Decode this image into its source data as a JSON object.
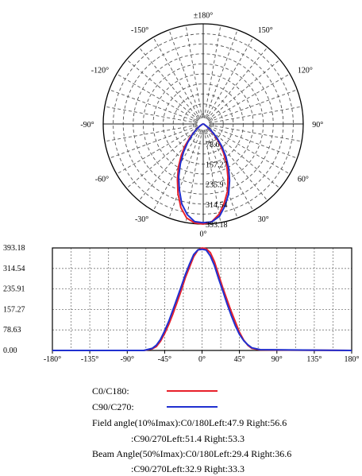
{
  "chart_data": [
    {
      "type": "polar",
      "angle_labels": [
        {
          "text": "±180°",
          "angle": 180
        },
        {
          "text": "-150°",
          "angle": -150
        },
        {
          "text": "150°",
          "angle": 150
        },
        {
          "text": "-120°",
          "angle": -120
        },
        {
          "text": "120°",
          "angle": 120
        },
        {
          "text": "-90°",
          "angle": -90
        },
        {
          "text": "90°",
          "angle": 90
        },
        {
          "text": "-60°",
          "angle": -60
        },
        {
          "text": "60°",
          "angle": 60
        },
        {
          "text": "-30°",
          "angle": -30
        },
        {
          "text": "30°",
          "angle": 30
        },
        {
          "text": "0°",
          "angle": 0
        }
      ],
      "radial_labels": [
        "78.6",
        "157.27",
        "235.9",
        "314.54",
        "393.18"
      ],
      "radial_values": [
        78.63,
        157.27,
        235.91,
        314.54,
        393.18
      ],
      "r_max": 393.18,
      "series": [
        {
          "name": "C0/C180",
          "color": "#e8202a",
          "points": [
            [
              -90,
              0
            ],
            [
              -80,
              2
            ],
            [
              -70,
              4
            ],
            [
              -62,
              10
            ],
            [
              -58,
              16
            ],
            [
              -55,
              25
            ],
            [
              -50,
              40
            ],
            [
              -45,
              70
            ],
            [
              -40,
              110
            ],
            [
              -35,
              150
            ],
            [
              -30,
              195
            ],
            [
              -25,
              240
            ],
            [
              -20,
              290
            ],
            [
              -15,
              340
            ],
            [
              -10,
              375
            ],
            [
              -5,
              390
            ],
            [
              0,
              393
            ],
            [
              5,
              385
            ],
            [
              10,
              360
            ],
            [
              15,
              320
            ],
            [
              20,
              280
            ],
            [
              25,
              230
            ],
            [
              30,
              185
            ],
            [
              35,
              140
            ],
            [
              40,
              100
            ],
            [
              45,
              65
            ],
            [
              50,
              35
            ],
            [
              55,
              15
            ],
            [
              60,
              6
            ],
            [
              70,
              3
            ],
            [
              80,
              1
            ],
            [
              90,
              0
            ]
          ]
        },
        {
          "name": "C90/C270",
          "color": "#2030d0",
          "points": [
            [
              -90,
              0
            ],
            [
              -80,
              2
            ],
            [
              -70,
              4
            ],
            [
              -62,
              10
            ],
            [
              -58,
              16
            ],
            [
              -55,
              22
            ],
            [
              -50,
              38
            ],
            [
              -45,
              62
            ],
            [
              -40,
              95
            ],
            [
              -35,
              135
            ],
            [
              -30,
              180
            ],
            [
              -25,
              228
            ],
            [
              -20,
              275
            ],
            [
              -15,
              325
            ],
            [
              -10,
              362
            ],
            [
              -5,
              385
            ],
            [
              0,
              388
            ],
            [
              5,
              386
            ],
            [
              10,
              368
            ],
            [
              15,
              332
            ],
            [
              20,
              292
            ],
            [
              25,
              245
            ],
            [
              30,
              200
            ],
            [
              35,
              155
            ],
            [
              40,
              112
            ],
            [
              45,
              75
            ],
            [
              50,
              42
            ],
            [
              55,
              20
            ],
            [
              60,
              8
            ],
            [
              70,
              3
            ],
            [
              80,
              1
            ],
            [
              90,
              0
            ]
          ]
        }
      ]
    },
    {
      "type": "line",
      "x_ticks": [
        "-180°",
        "-135°",
        "-90°",
        "-45°",
        "0°",
        "45°",
        "90°",
        "135°",
        "180°"
      ],
      "x_tick_values": [
        -180,
        -135,
        -90,
        -45,
        0,
        45,
        90,
        135,
        180
      ],
      "y_ticks": [
        "393.18",
        "314.54",
        "235.91",
        "157.27",
        "78.63",
        "0.00"
      ],
      "y_tick_values": [
        393.18,
        314.54,
        235.91,
        157.27,
        78.63,
        0
      ],
      "xlim": [
        -180,
        180
      ],
      "ylim": [
        0,
        393.18
      ],
      "grid": true,
      "series": [
        {
          "name": "C0/C180",
          "color": "#e8202a",
          "points": [
            [
              -180,
              0
            ],
            [
              -70,
              0
            ],
            [
              -60,
              6
            ],
            [
              -55,
              15
            ],
            [
              -50,
              35
            ],
            [
              -45,
              65
            ],
            [
              -40,
              100
            ],
            [
              -35,
              140
            ],
            [
              -30,
              185
            ],
            [
              -25,
              230
            ],
            [
              -20,
              280
            ],
            [
              -15,
              320
            ],
            [
              -10,
              360
            ],
            [
              -5,
              385
            ],
            [
              0,
              393
            ],
            [
              5,
              390
            ],
            [
              10,
              375
            ],
            [
              15,
              340
            ],
            [
              20,
              290
            ],
            [
              25,
              240
            ],
            [
              30,
              195
            ],
            [
              35,
              150
            ],
            [
              40,
              110
            ],
            [
              45,
              70
            ],
            [
              50,
              40
            ],
            [
              55,
              20
            ],
            [
              60,
              8
            ],
            [
              70,
              2
            ],
            [
              180,
              0
            ]
          ]
        },
        {
          "name": "C90/C270",
          "color": "#2030d0",
          "points": [
            [
              -180,
              0
            ],
            [
              -70,
              0
            ],
            [
              -60,
              8
            ],
            [
              -55,
              20
            ],
            [
              -50,
              42
            ],
            [
              -45,
              75
            ],
            [
              -40,
              112
            ],
            [
              -35,
              155
            ],
            [
              -30,
              200
            ],
            [
              -25,
              245
            ],
            [
              -20,
              292
            ],
            [
              -15,
              332
            ],
            [
              -10,
              368
            ],
            [
              -5,
              386
            ],
            [
              0,
              388
            ],
            [
              5,
              385
            ],
            [
              10,
              362
            ],
            [
              15,
              325
            ],
            [
              20,
              275
            ],
            [
              25,
              228
            ],
            [
              30,
              180
            ],
            [
              35,
              135
            ],
            [
              40,
              95
            ],
            [
              45,
              62
            ],
            [
              50,
              38
            ],
            [
              55,
              22
            ],
            [
              60,
              10
            ],
            [
              70,
              3
            ],
            [
              180,
              0
            ]
          ]
        }
      ]
    }
  ],
  "legend": [
    {
      "label": "C0/C180:",
      "color": "#e8202a"
    },
    {
      "label": "C90/C270:",
      "color": "#2030d0"
    }
  ],
  "notes": [
    "Field angle(10%Imax):C0/180Left:47.9 Right:56.6",
    ":C90/270Left:51.4 Right:53.3",
    "Beam Angle(50%Imax):C0/180Left:29.4 Right:36.6",
    ":C90/270Left:32.9 Right:33.3"
  ]
}
